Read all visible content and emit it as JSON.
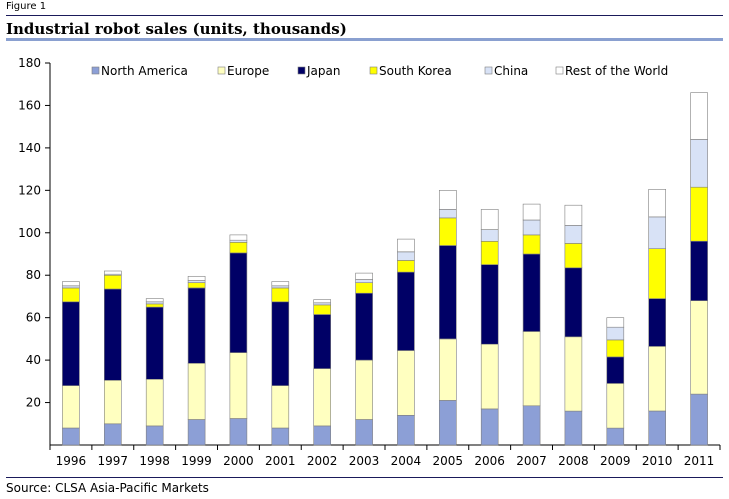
{
  "figure_label": "Figure 1",
  "source": "Source: CLSA Asia-Pacific Markets",
  "colors": {
    "North America": "#8c9fd6",
    "Europe": "#ffffc0",
    "Japan": "#000066",
    "South Korea": "#ffff00",
    "China": "#d8e2f6",
    "Rest of the World": "#ffffff"
  },
  "chart_data": {
    "type": "bar",
    "stacked": true,
    "title": "Industrial robot sales (units, thousands)",
    "xlabel": "",
    "ylabel": "",
    "ylim": [
      0,
      180
    ],
    "yticks": [
      20,
      40,
      60,
      80,
      100,
      120,
      140,
      160,
      180
    ],
    "grid": false,
    "legend": "top",
    "categories": [
      "1996",
      "1997",
      "1998",
      "1999",
      "2000",
      "2001",
      "2002",
      "2003",
      "2004",
      "2005",
      "2006",
      "2007",
      "2008",
      "2009",
      "2010",
      "2011"
    ],
    "series": [
      {
        "name": "North America",
        "values": [
          8,
          10,
          9,
          12,
          12.5,
          8,
          9,
          12,
          14,
          21,
          17,
          18.5,
          16,
          8,
          16,
          24
        ]
      },
      {
        "name": "Europe",
        "values": [
          20,
          20.5,
          22,
          26.5,
          31,
          20,
          27,
          28,
          30.5,
          29,
          30.5,
          35,
          35,
          21,
          30.5,
          44
        ]
      },
      {
        "name": "Japan",
        "values": [
          39.5,
          43,
          34,
          35.5,
          47,
          39.5,
          25.5,
          31.5,
          37,
          44,
          37.5,
          36.5,
          32.5,
          12.5,
          22.5,
          28
        ]
      },
      {
        "name": "South Korea",
        "values": [
          6.5,
          6.5,
          1.5,
          2.5,
          5,
          6.5,
          4.5,
          5,
          5.5,
          13,
          11,
          9,
          11.5,
          8,
          23.5,
          25.5
        ]
      },
      {
        "name": "China",
        "values": [
          1,
          0.5,
          1,
          1,
          1,
          1,
          1,
          1.5,
          4,
          4,
          5.5,
          7,
          8.5,
          6,
          15,
          22.5
        ]
      },
      {
        "name": "Rest of the World",
        "values": [
          2,
          1.5,
          1.5,
          2,
          2.5,
          2,
          1.5,
          3,
          6,
          9,
          9.5,
          7.5,
          9.5,
          4.5,
          13,
          22
        ]
      }
    ]
  }
}
